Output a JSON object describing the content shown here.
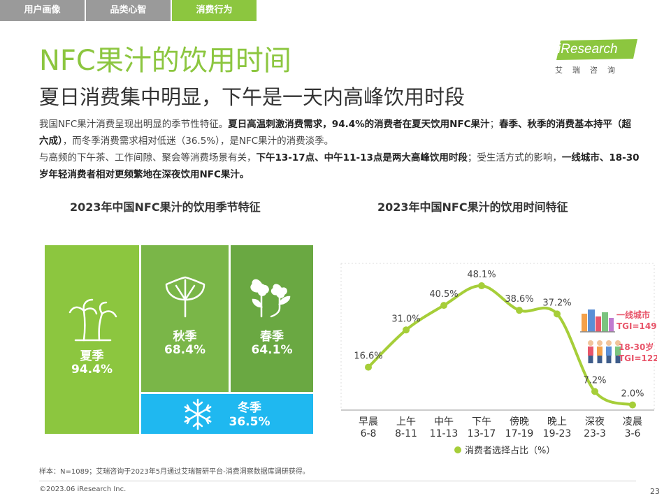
{
  "tabs": [
    {
      "label": "用户画像"
    },
    {
      "label": "品类心智"
    },
    {
      "label": "消费行为"
    }
  ],
  "title": "NFC果汁的饮用时间",
  "subtitle": "夏日消费集中明显，下午是一天内高峰饮用时段",
  "logo": {
    "text": "iResearch",
    "sub": "艾瑞咨询"
  },
  "paragraphs": {
    "p1": [
      {
        "text": "我国NFC果汁消费呈现出明显的季节性特征。",
        "bold": false
      },
      {
        "text": "夏日高温刺激消费需求，94.4%的消费者在夏天饮用NFC果汁",
        "bold": true
      },
      {
        "text": "；",
        "bold": false
      },
      {
        "text": "春季、秋季的消费基本持平（超六成）",
        "bold": true
      },
      {
        "text": "，而冬季消费需求相对低迷（36.5%），是NFC果汁的消费淡季。",
        "bold": false
      }
    ],
    "p2": [
      {
        "text": "与高频的下午茶、工作间隙、聚会等消费场景有关，",
        "bold": false
      },
      {
        "text": "下午13-17点、中午11-13点是两大高峰饮用时段",
        "bold": true
      },
      {
        "text": "；受生活方式的影响，",
        "bold": false
      },
      {
        "text": "一线城市、18-30岁年轻消费者相对更频繁地在深夜饮用NFC果汁。",
        "bold": true
      }
    ]
  },
  "season_chart": {
    "title": "2023年中国NFC果汁的饮用季节特征",
    "tiles": [
      {
        "label": "夏季",
        "value": "94.4%",
        "color": "#8cc63f",
        "icon": "palm-tree-icon"
      },
      {
        "label": "秋季",
        "value": "68.4%",
        "color": "#7ab648",
        "icon": "ginkgo-leaf-icon"
      },
      {
        "label": "春季",
        "value": "64.1%",
        "color": "#6aa842",
        "icon": "sprout-icon"
      },
      {
        "label": "冬季",
        "value": "36.5%",
        "color": "#1fb8f0",
        "icon": "snowflake-icon"
      }
    ]
  },
  "time_chart": {
    "title": "2023年中国NFC果汁的饮用时间特征"
  },
  "chart_data": [
    {
      "type": "treemap",
      "title": "2023年中国NFC果汁的饮用季节特征",
      "categories": [
        "夏季",
        "秋季",
        "春季",
        "冬季"
      ],
      "values": [
        94.4,
        68.4,
        64.1,
        36.5
      ],
      "unit": "%"
    },
    {
      "type": "line",
      "title": "2023年中国NFC果汁的饮用时间特征",
      "categories": [
        {
          "name": "早晨",
          "range": "6-8"
        },
        {
          "name": "上午",
          "range": "8-11"
        },
        {
          "name": "中午",
          "range": "11-13"
        },
        {
          "name": "下午",
          "range": "13-17"
        },
        {
          "name": "傍晚",
          "range": "17-19"
        },
        {
          "name": "晚上",
          "range": "19-23"
        },
        {
          "name": "深夜",
          "range": "23-3"
        },
        {
          "name": "凌晨",
          "range": "3-6"
        }
      ],
      "series": [
        {
          "name": "消费者选择占比（%）",
          "values": [
            16.6,
            31.0,
            40.5,
            48.1,
            38.6,
            37.2,
            7.2,
            2.0
          ],
          "color": "#a6ce39"
        }
      ],
      "ylim": [
        0,
        60
      ],
      "grid": false,
      "legend": "bottom",
      "annotations": [
        {
          "label": "一线城市",
          "value": "TGI=149",
          "color": "#e8556a",
          "icon": "city-buildings-icon"
        },
        {
          "label": "18-30岁",
          "value": "TGI=122",
          "color": "#e8556a",
          "icon": "young-people-icon"
        }
      ]
    }
  ],
  "footnote": "样本：N=1089；艾瑞咨询于2023年5月通过艾瑞智研平台-消费洞察数据库调研获得。",
  "copyright": "©2023.06 iResearch Inc.",
  "page_number": "23"
}
